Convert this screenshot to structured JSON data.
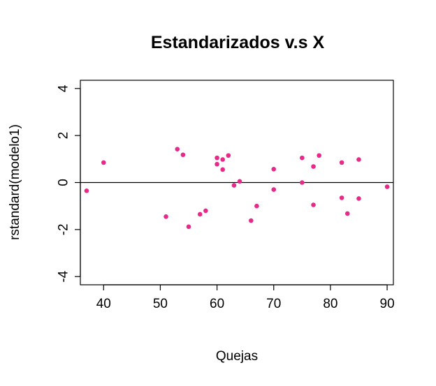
{
  "chart_data": {
    "type": "scatter",
    "title": "Estandarizados v.s X",
    "xlabel": "Quejas",
    "ylabel": "rstandard(modelo1)",
    "xlim": [
      35.9,
      91.1
    ],
    "ylim": [
      -4.35,
      4.35
    ],
    "x_ticks": [
      40,
      50,
      60,
      70,
      80,
      90
    ],
    "y_ticks": [
      -4,
      -2,
      0,
      2,
      4
    ],
    "x_tick_labels": [
      "40",
      "50",
      "60",
      "70",
      "80",
      "90"
    ],
    "y_tick_labels": [
      "-4",
      "-2",
      "0",
      "2",
      "4"
    ],
    "reference_line_y": 0,
    "grid": false,
    "point_color": "#E7298A",
    "points": [
      {
        "x": 37,
        "y": -0.35
      },
      {
        "x": 40,
        "y": 0.85
      },
      {
        "x": 51,
        "y": -1.45
      },
      {
        "x": 53,
        "y": 1.42
      },
      {
        "x": 54,
        "y": 1.18
      },
      {
        "x": 55,
        "y": -1.88
      },
      {
        "x": 57,
        "y": -1.35
      },
      {
        "x": 58,
        "y": -1.2
      },
      {
        "x": 60,
        "y": 1.05
      },
      {
        "x": 60,
        "y": 0.78
      },
      {
        "x": 61,
        "y": 0.98
      },
      {
        "x": 61,
        "y": 0.55
      },
      {
        "x": 62,
        "y": 1.15
      },
      {
        "x": 63,
        "y": -0.12
      },
      {
        "x": 64,
        "y": 0.05
      },
      {
        "x": 66,
        "y": -1.62
      },
      {
        "x": 67,
        "y": -1.0
      },
      {
        "x": 70,
        "y": 0.57
      },
      {
        "x": 70,
        "y": -0.3
      },
      {
        "x": 75,
        "y": 1.05
      },
      {
        "x": 75,
        "y": 0.0
      },
      {
        "x": 77,
        "y": 0.68
      },
      {
        "x": 77,
        "y": -0.95
      },
      {
        "x": 78,
        "y": 1.15
      },
      {
        "x": 82,
        "y": 0.85
      },
      {
        "x": 82,
        "y": -0.65
      },
      {
        "x": 83,
        "y": -1.32
      },
      {
        "x": 85,
        "y": 0.98
      },
      {
        "x": 85,
        "y": -0.68
      },
      {
        "x": 90,
        "y": -0.18
      }
    ]
  }
}
